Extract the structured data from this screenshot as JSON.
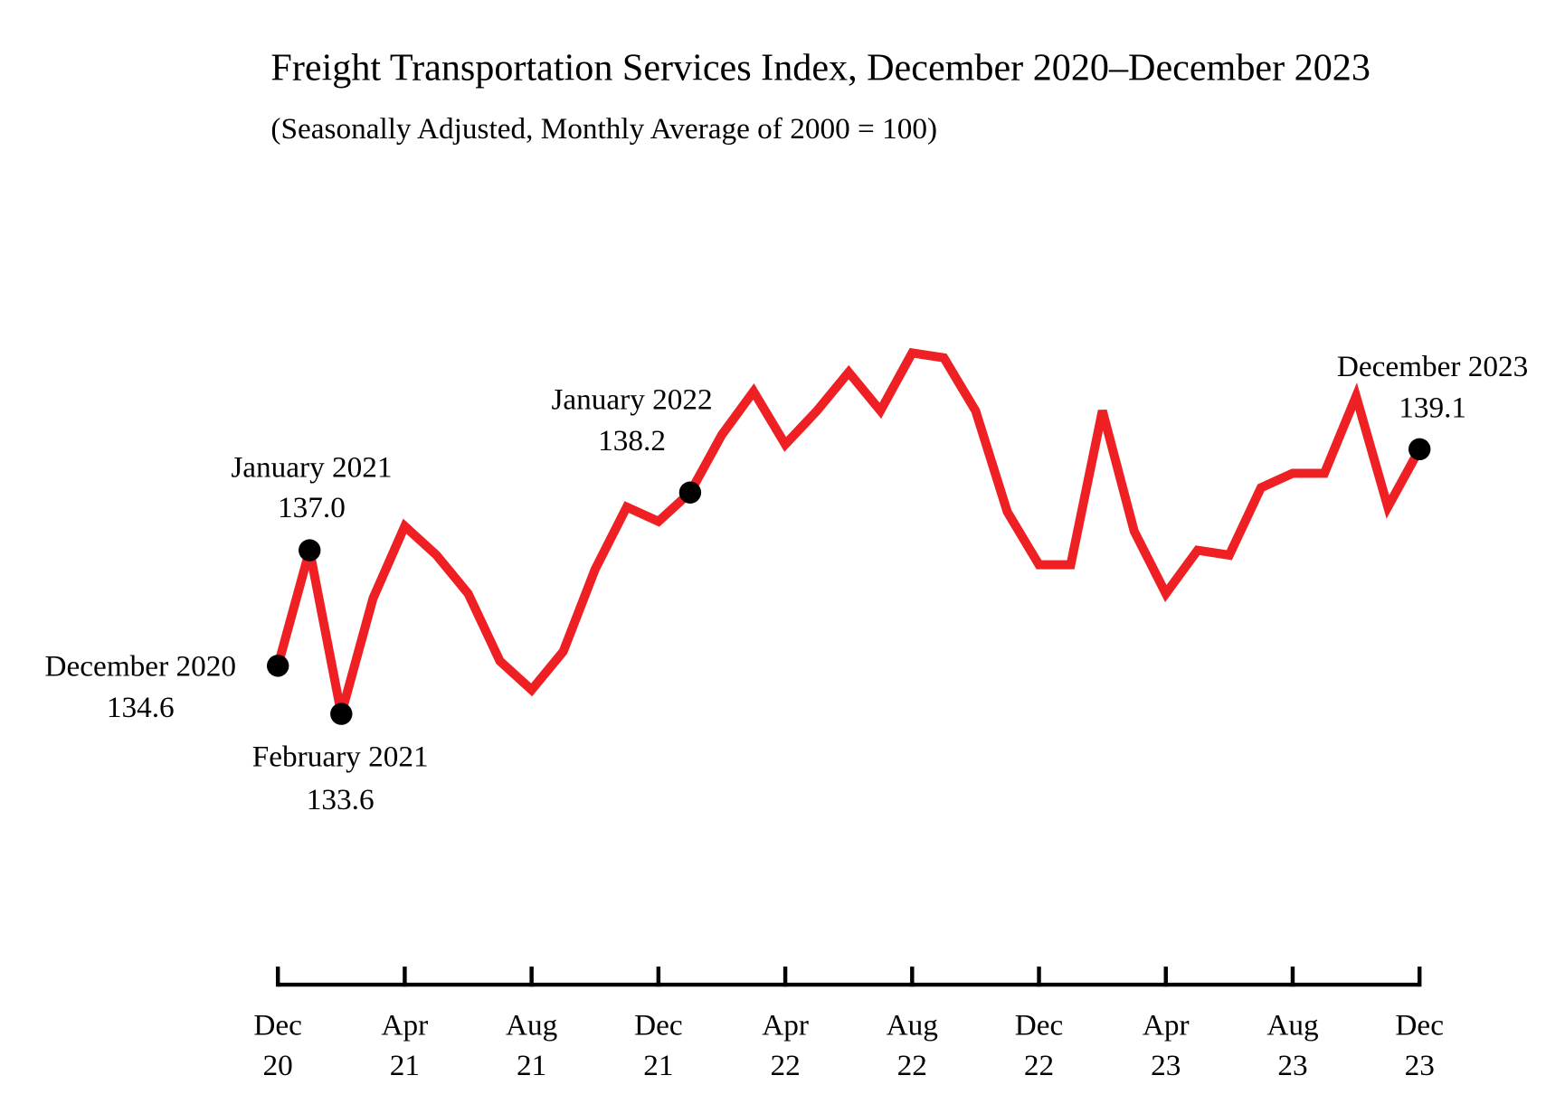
{
  "chart_data": {
    "type": "line",
    "title": "Freight Transportation Services Index, December 2020–December 2023",
    "subtitle": "(Seasonally Adjusted, Monthly Average of 2000 = 100)",
    "categories": [
      "Dec 20",
      null,
      null,
      null,
      "Apr 21",
      null,
      null,
      null,
      "Aug 21",
      null,
      null,
      null,
      "Dec 21",
      null,
      null,
      null,
      "Apr 22",
      null,
      null,
      null,
      "Aug 22",
      null,
      null,
      null,
      "Dec 22",
      null,
      null,
      null,
      "Apr 23",
      null,
      null,
      null,
      "Aug 23",
      null,
      null,
      null,
      "Dec 23"
    ],
    "series": [
      {
        "color": "#ee2024",
        "values": [
          134.6,
          137.0,
          133.6,
          136.0,
          137.5,
          136.9,
          136.1,
          134.7,
          134.1,
          134.9,
          136.6,
          137.9,
          137.6,
          138.2,
          139.4,
          140.3,
          139.2,
          139.9,
          140.7,
          139.9,
          141.1,
          141.0,
          139.9,
          137.8,
          136.7,
          136.7,
          139.9,
          137.4,
          136.1,
          137.0,
          136.9,
          138.3,
          138.6,
          138.6,
          140.2,
          137.9,
          139.1
        ],
        "point_labels": [
          "December 2020",
          "January 2021",
          "February 2021",
          null,
          null,
          null,
          null,
          null,
          null,
          null,
          null,
          null,
          null,
          "January 2022",
          null,
          null,
          null,
          null,
          null,
          null,
          null,
          null,
          null,
          null,
          null,
          null,
          null,
          null,
          null,
          null,
          null,
          null,
          null,
          null,
          null,
          null,
          "December 2023"
        ],
        "value_labels": [
          "134.6",
          "137.0",
          "133.6",
          null,
          null,
          null,
          null,
          null,
          null,
          null,
          null,
          null,
          null,
          "138.2",
          null,
          null,
          null,
          null,
          null,
          null,
          null,
          null,
          null,
          null,
          null,
          null,
          null,
          null,
          null,
          null,
          null,
          null,
          null,
          null,
          null,
          null,
          "139.1"
        ]
      }
    ]
  }
}
